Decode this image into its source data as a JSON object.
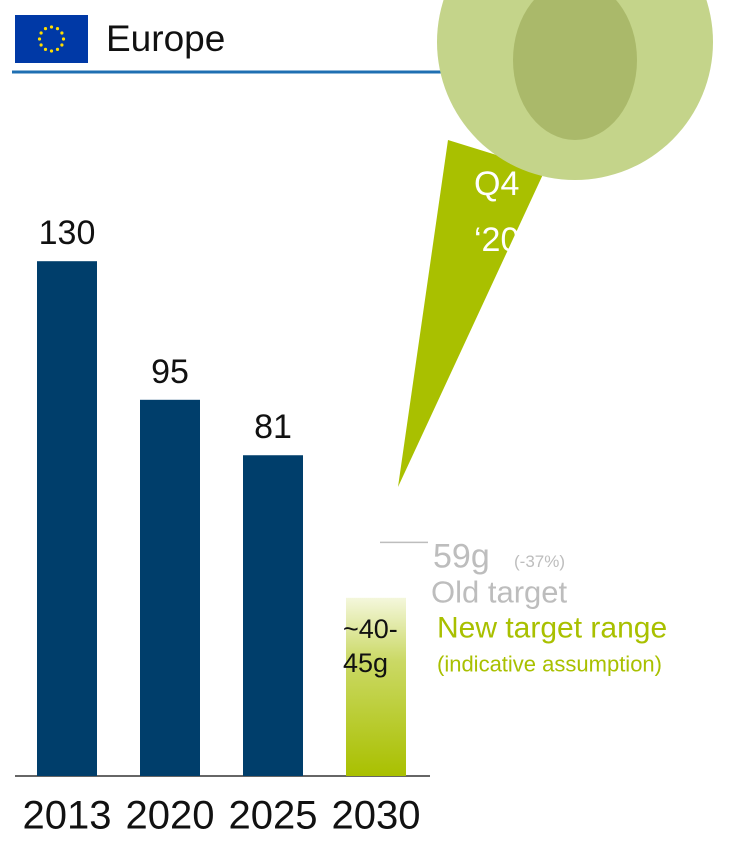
{
  "header": {
    "title": "Europe"
  },
  "callout": {
    "lines": [
      "Q4",
      "‘20"
    ]
  },
  "chart_data": {
    "type": "bar",
    "categories": [
      "2013",
      "2020",
      "2025",
      "2030"
    ],
    "values": [
      130,
      95,
      81,
      null
    ],
    "color": "#003e6b",
    "old_target": {
      "value": 59,
      "label": "59g",
      "change": "(-37%)",
      "name": "Old target",
      "color": "#bdbdbd"
    },
    "new_target": {
      "low": 40,
      "high": 45,
      "label": "~40-45g",
      "name": "New target range",
      "note": "(indicative assumption)",
      "color": "#a9c000"
    }
  }
}
